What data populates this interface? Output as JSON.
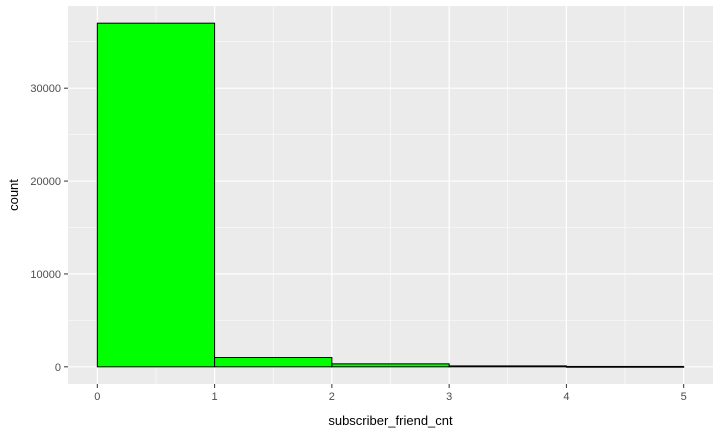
{
  "chart_data": {
    "type": "bar",
    "title": "",
    "xlabel": "subscriber_friend_cnt",
    "ylabel": "count",
    "bins": [
      {
        "start": 0,
        "end": 1,
        "count": 37000
      },
      {
        "start": 1,
        "end": 2,
        "count": 1000
      },
      {
        "start": 2,
        "end": 3,
        "count": 320
      },
      {
        "start": 3,
        "end": 4,
        "count": 100
      },
      {
        "start": 4,
        "end": 5,
        "count": 40
      }
    ],
    "xlim": [
      -0.25,
      5.25
    ],
    "ylim": [
      -1850,
      38850
    ],
    "x_ticks": [
      0,
      1,
      2,
      3,
      4,
      5
    ],
    "x_tick_labels": [
      "0",
      "1",
      "2",
      "3",
      "4",
      "5"
    ],
    "y_ticks": [
      0,
      10000,
      20000,
      30000
    ],
    "y_tick_labels": [
      "0",
      "10000",
      "20000",
      "30000"
    ],
    "grid": true,
    "legend": "none",
    "colors": {
      "bar_fill": "#00ff00",
      "bar_stroke": "#000000",
      "panel_bg": "#ebebeb",
      "grid_major": "#ffffff",
      "tick_mark": "#333333"
    }
  }
}
